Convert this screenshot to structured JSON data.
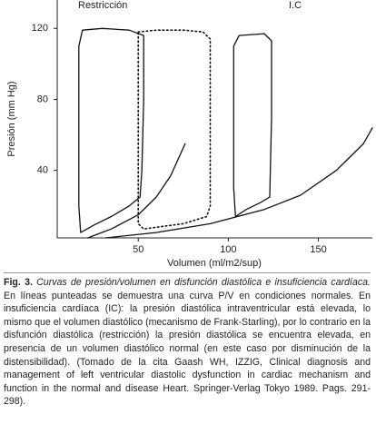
{
  "chart_data": {
    "type": "line",
    "xlabel": "Volumen (ml/m2/sup)",
    "ylabel": "Presión (mm Hg)",
    "annotations": [
      "Restricción",
      "I.C"
    ],
    "xlim": [
      5,
      180
    ],
    "ylim": [
      2,
      136
    ],
    "xticks": [
      50,
      100,
      150
    ],
    "yticks": [
      40,
      80,
      120
    ],
    "series": [
      {
        "color": "#111111",
        "style": "solid",
        "x": [
          18,
          17,
          17,
          17,
          19,
          30,
          45,
          53,
          53,
          52,
          51,
          45,
          35,
          25,
          18
        ],
        "values": [
          5,
          20,
          60,
          110,
          119,
          120,
          119,
          116,
          80,
          40,
          25,
          20,
          14,
          9,
          5
        ]
      },
      {
        "color": "#111111",
        "style": "solid",
        "x": [
          22,
          35,
          50,
          60,
          68,
          76
        ],
        "values": [
          2,
          7,
          15,
          25,
          37,
          55
        ]
      },
      {
        "color": "#111111",
        "style": "dotted",
        "x": [
          50,
          60,
          75,
          86,
          90,
          90,
          90,
          88,
          75,
          60,
          53,
          50,
          50
        ],
        "values": [
          118,
          119,
          119,
          118,
          114,
          80,
          20,
          14,
          10,
          8,
          7,
          10,
          118
        ]
      },
      {
        "color": "#111111",
        "style": "solid",
        "x": [
          104,
          103,
          103,
          106,
          120,
          124,
          124,
          123,
          118,
          110,
          104
        ],
        "values": [
          14,
          30,
          110,
          116,
          117,
          113,
          70,
          25,
          22,
          18,
          14
        ]
      },
      {
        "color": "#111111",
        "style": "solid",
        "x": [
          32,
          60,
          90,
          120,
          140,
          160,
          175,
          180
        ],
        "values": [
          2,
          5,
          10,
          18,
          26,
          40,
          55,
          64
        ]
      }
    ]
  },
  "caption": {
    "label": "Fig. 3.",
    "title": "Curvas de presión/volumen en disfunción diastólica e insuficiencia cardíaca.",
    "text": "En líneas punteadas se demuestra una curva P/V en condiciones normales. En insuficiencia cardíaca (IC): la presión diastólica intraventricular está elevada, lo mismo que el volumen diastólico (mecanismo de Frank-Starling), por lo contrario en la disfunción diastólica (restricción) la presión diastólica se encuentra elevada, en presencia de un volumen diastólico normal (en este caso por disminución de la distensibilidad). (Tomado de la cita Gaash WH, IZZIG, Clinical diagnosis and management of left ventricular diastolic dysfunction in cardiac mechanism and function in the normal and disease Heart. Springer-Verlag Tokyo 1989. Pags. 291-298)."
  }
}
